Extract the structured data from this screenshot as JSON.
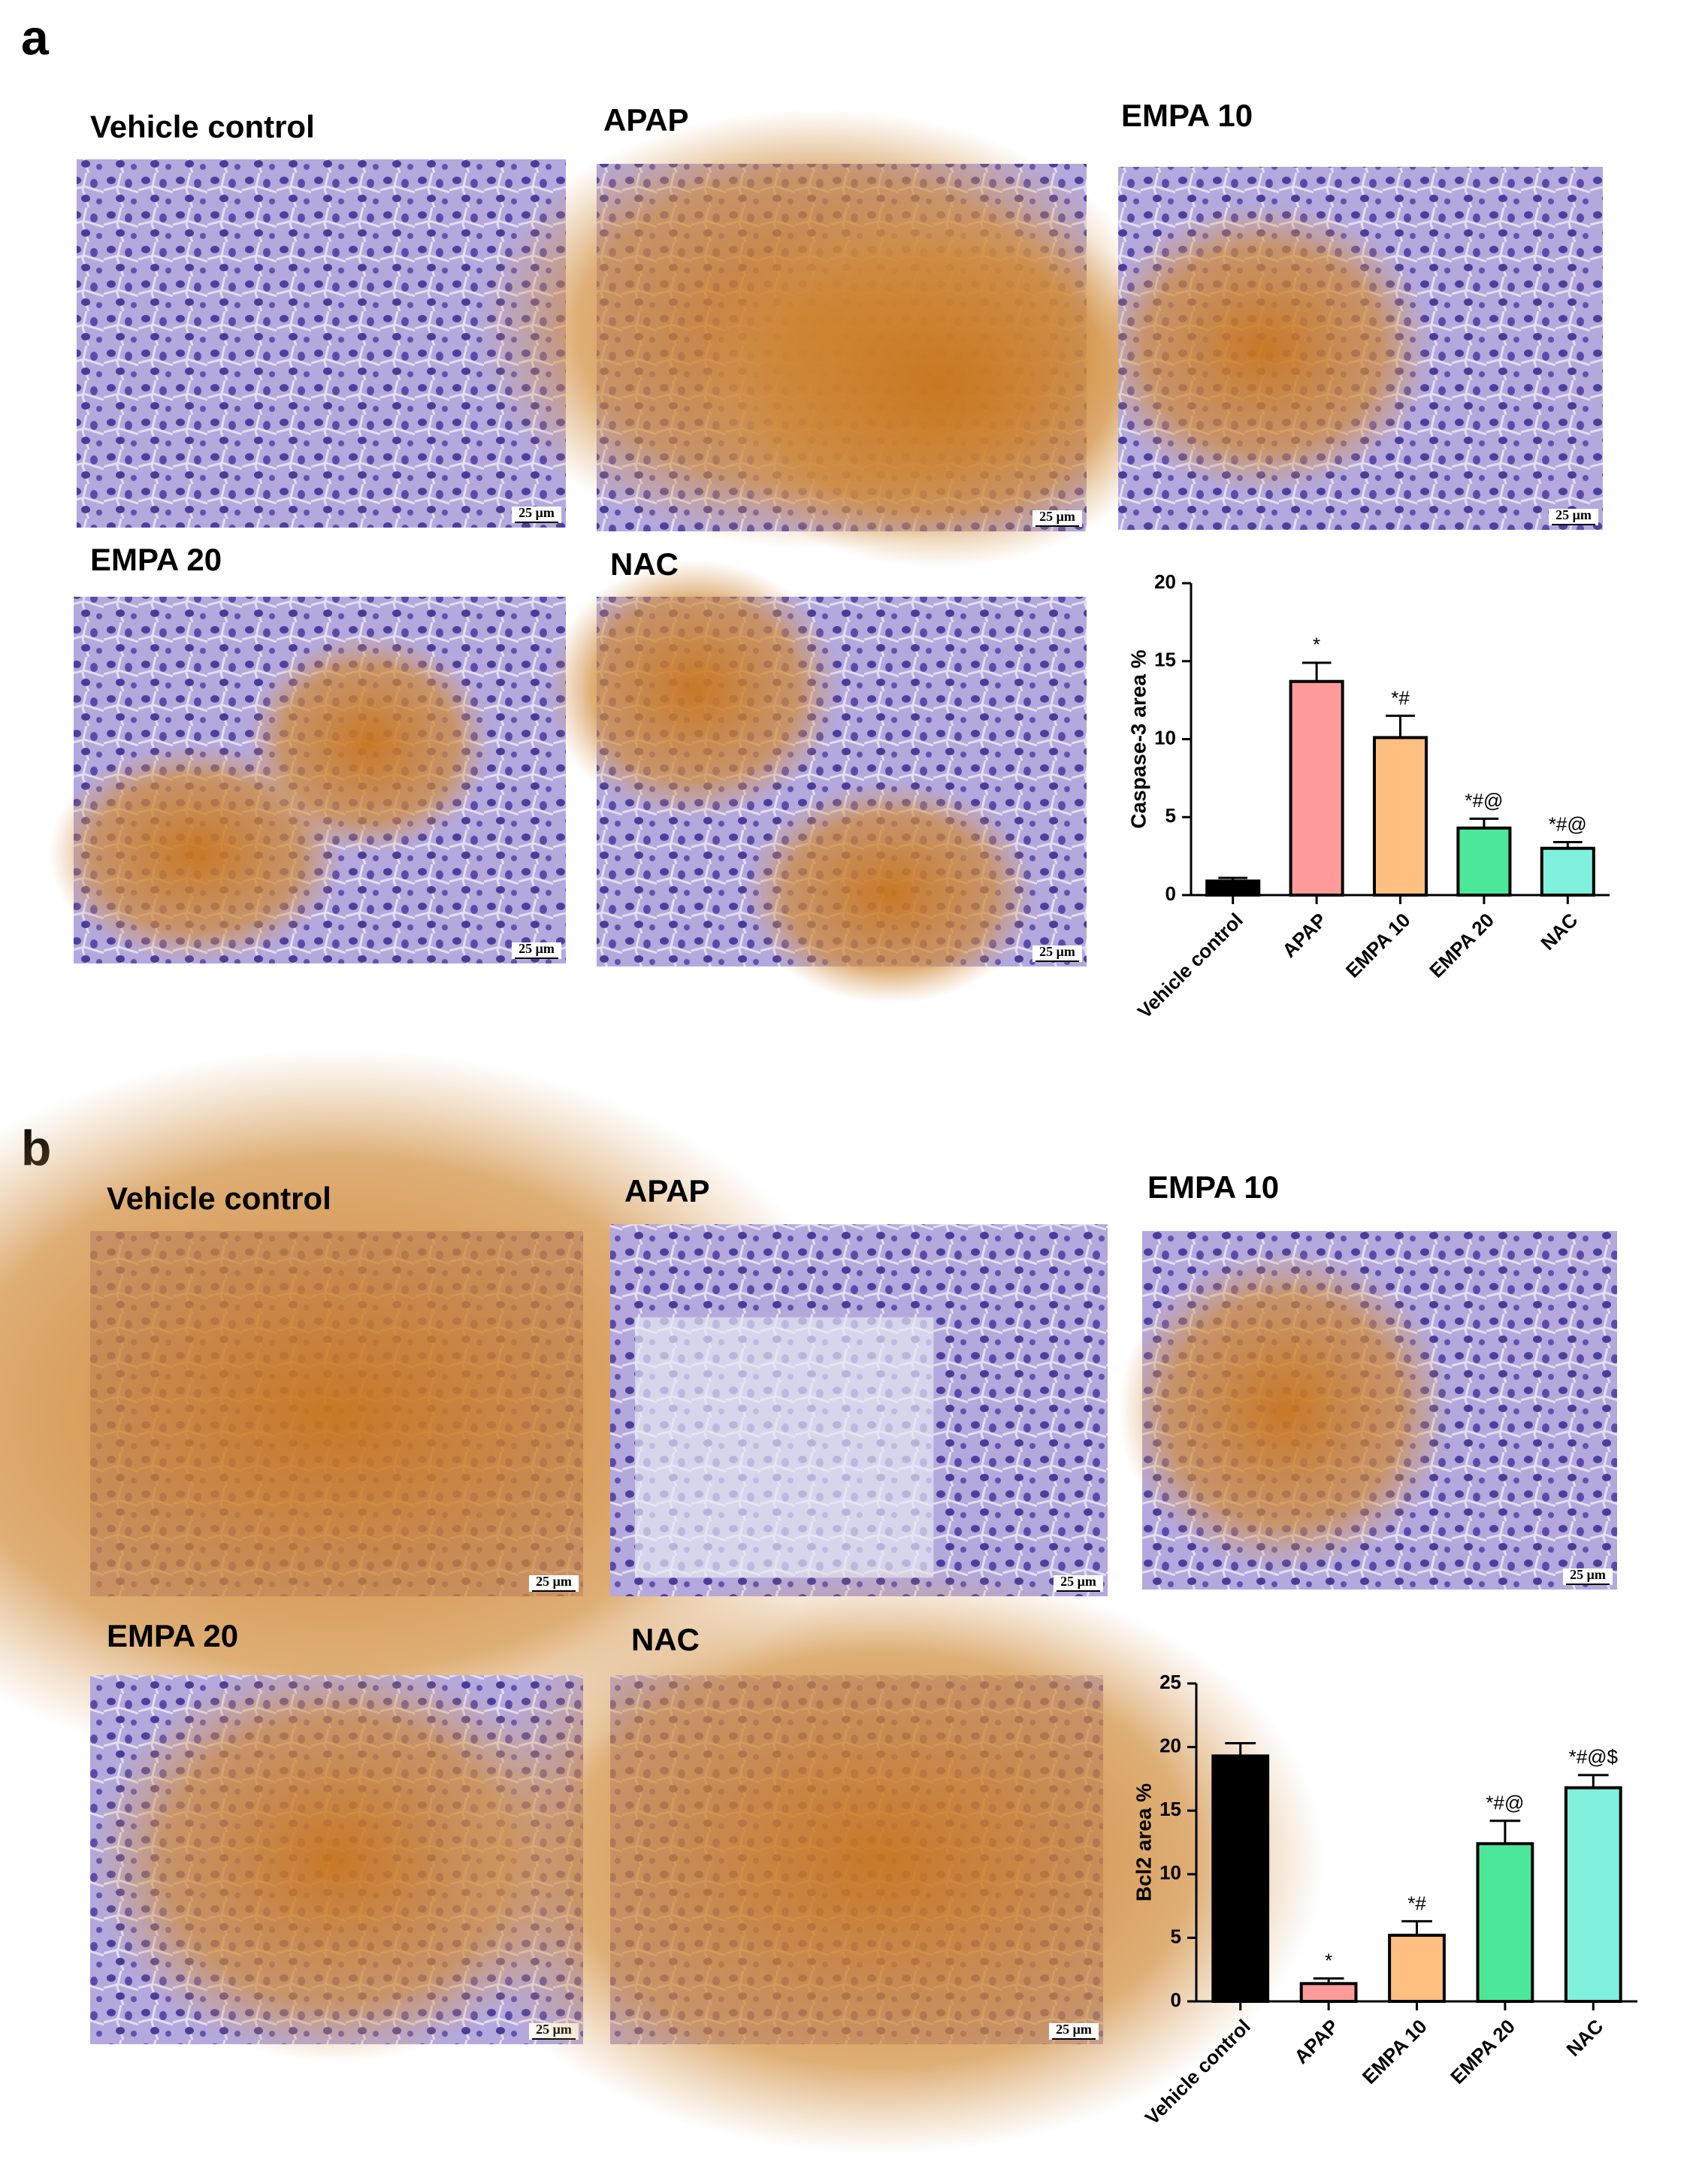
{
  "panels": [
    {
      "label": "a",
      "images": [
        {
          "title": "Vehicle control",
          "scale_bar": "25 μm"
        },
        {
          "title": "APAP",
          "scale_bar": "25 μm"
        },
        {
          "title": "EMPA 10",
          "scale_bar": "25 μm"
        },
        {
          "title": "EMPA 20",
          "scale_bar": "25 μm"
        },
        {
          "title": "NAC",
          "scale_bar": "25 μm"
        }
      ]
    },
    {
      "label": "b",
      "images": [
        {
          "title": "Vehicle control",
          "scale_bar": "25 μm"
        },
        {
          "title": "APAP",
          "scale_bar": "25 μm"
        },
        {
          "title": "EMPA 10",
          "scale_bar": "25 μm"
        },
        {
          "title": "EMPA 20",
          "scale_bar": "25 μm"
        },
        {
          "title": "NAC",
          "scale_bar": "25 μm"
        }
      ]
    }
  ],
  "chart_data": [
    {
      "type": "bar",
      "y_label": "Caspase-3 area %",
      "categories": [
        "Vehicle control",
        "APAP",
        "EMPA 10",
        "EMPA 20",
        "NAC"
      ],
      "values": [
        0.9,
        13.7,
        10.1,
        4.3,
        3.0
      ],
      "errors": [
        0.2,
        1.2,
        1.4,
        0.6,
        0.4
      ],
      "annotations": [
        null,
        "*",
        "*#",
        "*#@",
        "*#@"
      ],
      "colors": [
        "#000000",
        "#ff9b9b",
        "#ffbf80",
        "#4ce899",
        "#80f0dc"
      ],
      "ylim": [
        0,
        20
      ],
      "yticks": [
        0,
        5,
        10,
        15,
        20
      ]
    },
    {
      "type": "bar",
      "y_label": "Bcl2 area %",
      "categories": [
        "Vehicle control",
        "APAP",
        "EMPA 10",
        "EMPA 20",
        "NAC"
      ],
      "values": [
        19.3,
        1.4,
        5.2,
        12.4,
        16.8
      ],
      "errors": [
        1.0,
        0.4,
        1.1,
        1.8,
        1.0
      ],
      "annotations": [
        null,
        "*",
        "*#",
        "*#@",
        "*#@$"
      ],
      "colors": [
        "#000000",
        "#ff9b9b",
        "#ffbf80",
        "#4ce899",
        "#80f0dc"
      ],
      "ylim": [
        0,
        25
      ],
      "yticks": [
        0,
        5,
        10,
        15,
        20,
        25
      ]
    }
  ]
}
